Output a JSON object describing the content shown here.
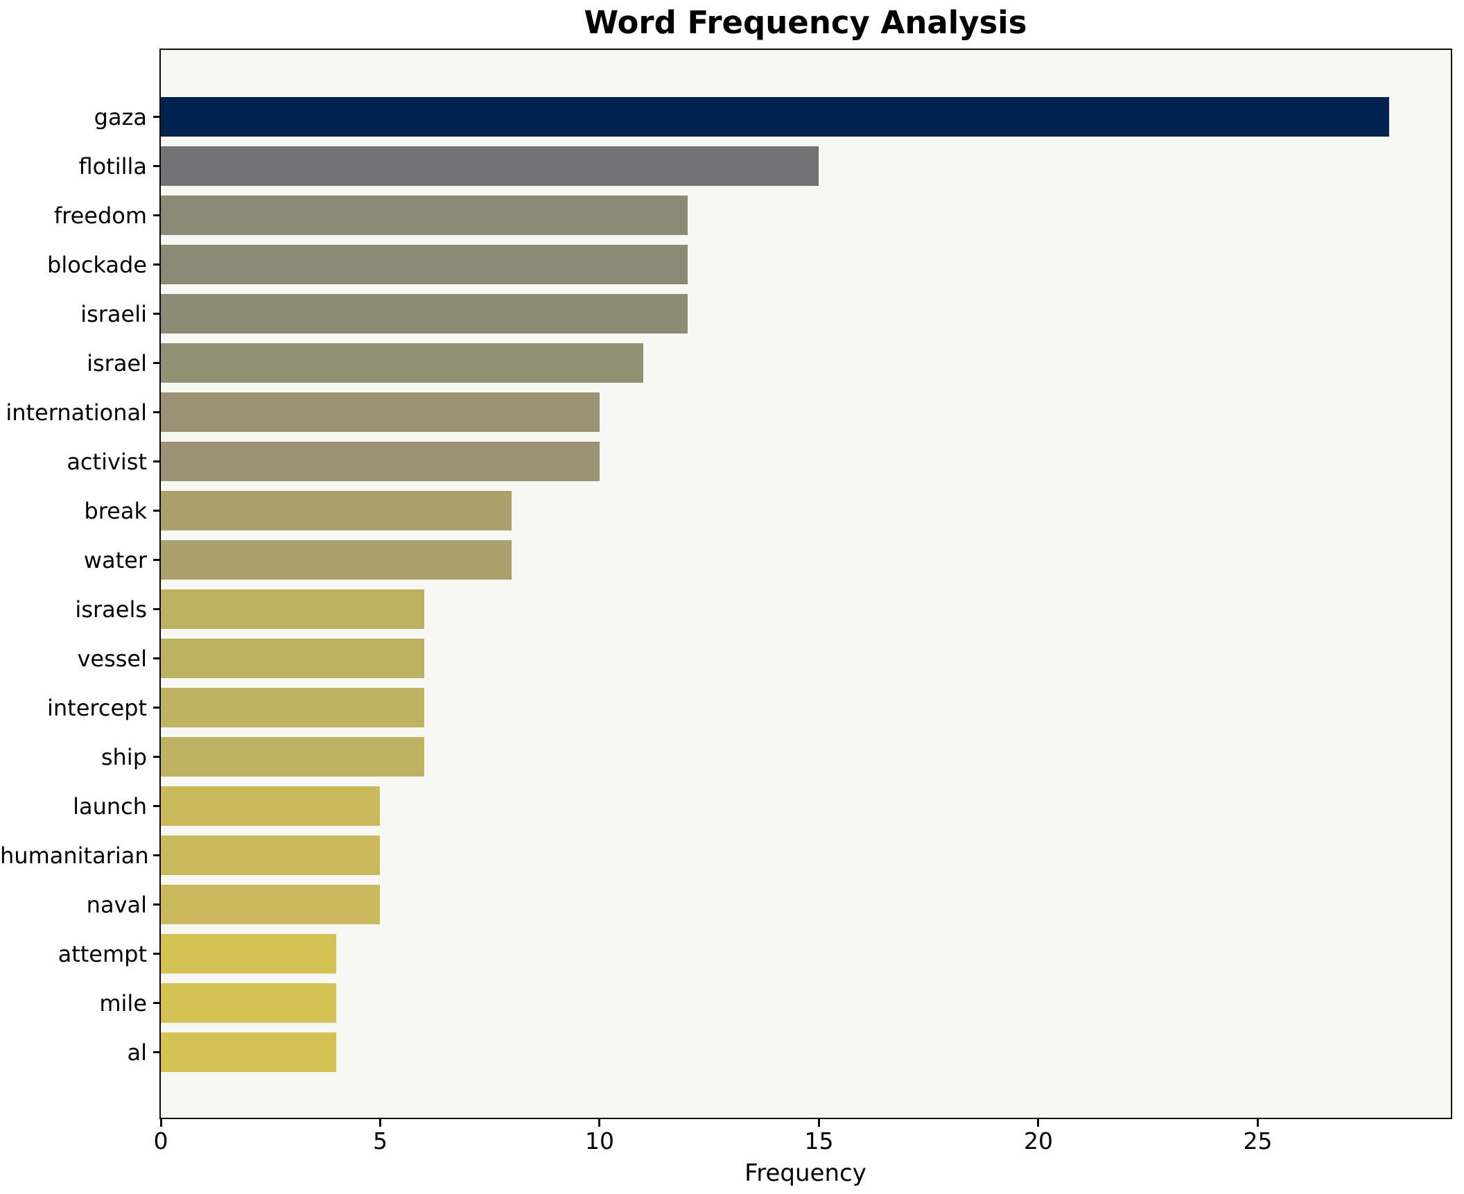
{
  "chart_data": {
    "type": "bar",
    "orientation": "horizontal",
    "title": "Word Frequency Analysis",
    "xlabel": "Frequency",
    "ylabel": "",
    "categories": [
      "gaza",
      "flotilla",
      "freedom",
      "blockade",
      "israeli",
      "israel",
      "international",
      "activist",
      "break",
      "water",
      "israels",
      "vessel",
      "intercept",
      "ship",
      "launch",
      "humanitarian",
      "naval",
      "attempt",
      "mile",
      "al"
    ],
    "values": [
      28,
      15,
      12,
      12,
      12,
      11,
      10,
      10,
      8,
      8,
      6,
      6,
      6,
      6,
      5,
      5,
      5,
      4,
      4,
      4
    ],
    "bar_colors": [
      "#00234e",
      "#727275",
      "#8e8977",
      "#8e8977",
      "#8f8a76",
      "#949076",
      "#9b9374",
      "#9b9374",
      "#a9a06c",
      "#a9a06c",
      "#bcb061",
      "#bcb061",
      "#bfb261",
      "#bfb261",
      "#c9b95c",
      "#c9b95c",
      "#c9b95c",
      "#d4c255",
      "#d4c255",
      "#d4c255"
    ],
    "xticks": [
      0,
      5,
      10,
      15,
      20,
      25
    ],
    "xlim": [
      0,
      29.4
    ],
    "grid": false,
    "legend": false,
    "plot_bg": "#f7f7f4",
    "figure_bg": "#ffffff",
    "spine_color": "#0a0a0a"
  },
  "layout_hint": {
    "bars_sorted": "descending top to bottom",
    "tick_label_color": "#000000"
  }
}
